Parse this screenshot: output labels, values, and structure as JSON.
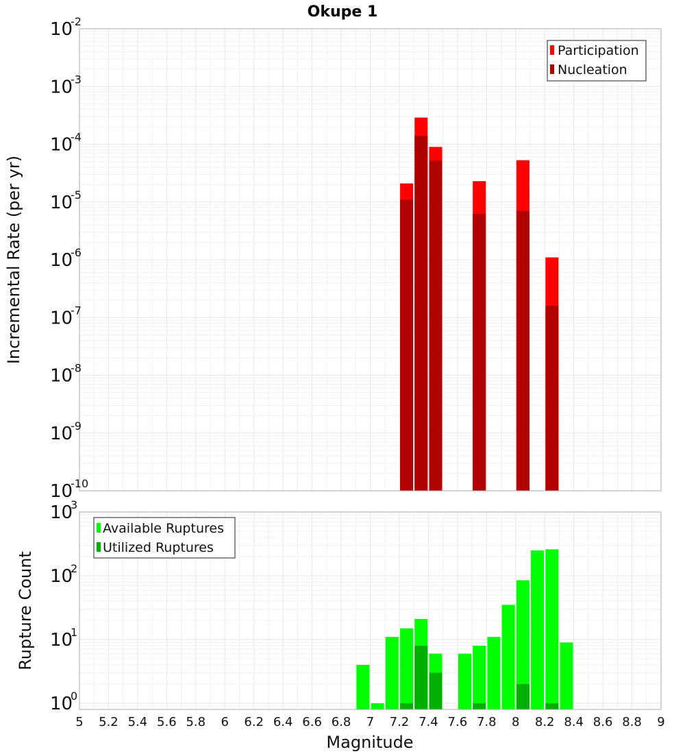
{
  "chart_data": [
    {
      "type": "bar",
      "title": "Okupe 1",
      "ylabel": "Incremental Rate (per yr)",
      "xlabel": "",
      "xlim": [
        5,
        9
      ],
      "ylim": [
        1e-10,
        0.01
      ],
      "yscale": "log",
      "grid": true,
      "legend_position": "top-right",
      "y_tick_exponents": [
        "-2",
        "-3",
        "-4",
        "-5",
        "-6",
        "-7",
        "-8",
        "-9",
        "-10"
      ],
      "y_tick_base": "10",
      "x": [
        7.25,
        7.35,
        7.45,
        7.75,
        8.05,
        8.25
      ],
      "series": [
        {
          "name": "Participation",
          "color": "#ff0000",
          "values": [
            2.1e-05,
            0.00029,
            9e-05,
            2.3e-05,
            5.3e-05,
            1.1e-06
          ]
        },
        {
          "name": "Nucleation",
          "color": "#b00000",
          "values": [
            1.1e-05,
            0.00014,
            5.2e-05,
            6.2e-06,
            7e-06,
            1.6e-07
          ]
        }
      ]
    },
    {
      "type": "bar",
      "title": "",
      "ylabel": "Rupture Count",
      "xlabel": "Magnitude",
      "xlim": [
        5,
        9
      ],
      "ylim": [
        0.8,
        1000
      ],
      "yscale": "log",
      "grid": true,
      "legend_position": "top-left",
      "y_tick_exponents": [
        "3",
        "2",
        "1",
        "0"
      ],
      "y_tick_base": "10",
      "x_ticks": [
        "5",
        "5.2",
        "5.4",
        "5.6",
        "5.8",
        "6",
        "6.2",
        "6.4",
        "6.6",
        "6.8",
        "7",
        "7.2",
        "7.4",
        "7.6",
        "7.8",
        "8",
        "8.2",
        "8.4",
        "8.6",
        "8.8",
        "9"
      ],
      "x": [
        6.95,
        7.05,
        7.15,
        7.25,
        7.35,
        7.45,
        7.65,
        7.75,
        7.85,
        7.95,
        8.05,
        8.15,
        8.25,
        8.35
      ],
      "series": [
        {
          "name": "Available Ruptures",
          "color": "#00ff00",
          "values": [
            4,
            1,
            11,
            15,
            21,
            6,
            6,
            8,
            11,
            35,
            85,
            250,
            260,
            9
          ]
        },
        {
          "name": "Utilized Ruptures",
          "color": "#00b000",
          "values": [
            0,
            0,
            0,
            1,
            8,
            3,
            0,
            1,
            0,
            0,
            2,
            0,
            1,
            0
          ]
        }
      ]
    }
  ]
}
